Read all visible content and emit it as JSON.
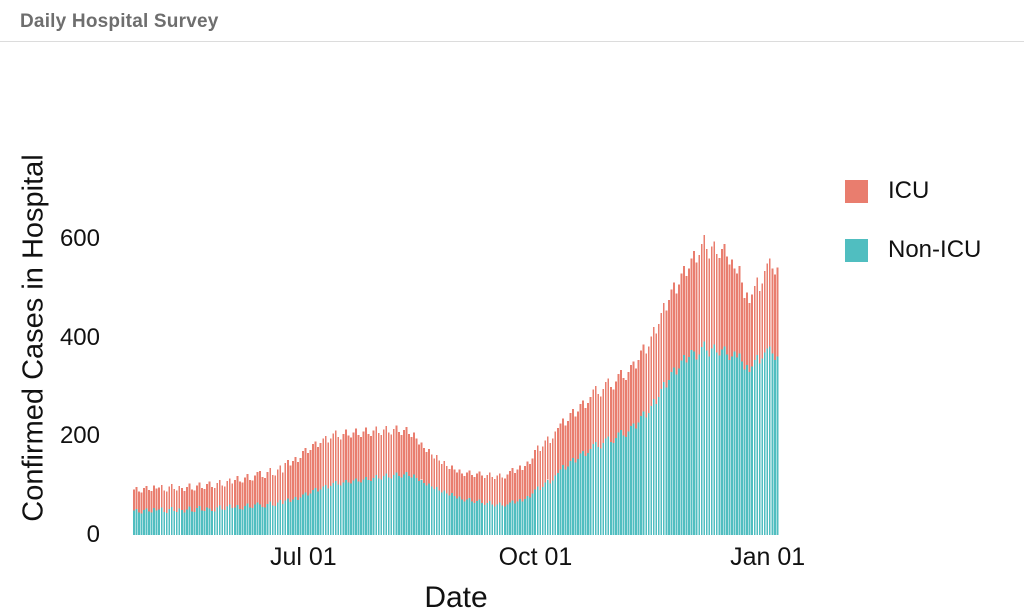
{
  "header": {
    "title": "Daily Hospital Survey"
  },
  "chart_data": {
    "type": "bar",
    "stacked": true,
    "title": "Daily Hospital Survey",
    "xlabel": "Date",
    "ylabel": "Confirmed Cases in Hospital",
    "ylim": [
      0,
      650
    ],
    "yticks": [
      0,
      200,
      400,
      600
    ],
    "grid": false,
    "x": {
      "interval": "daily",
      "start_date": "Apr 25",
      "end_date": "Jan 05",
      "n_points": 256
    },
    "xticks": [
      {
        "label": "Jul 01",
        "index": 67
      },
      {
        "label": "Oct 01",
        "index": 159
      },
      {
        "label": "Jan 01",
        "index": 251
      }
    ],
    "legend": {
      "position": "right",
      "entries": [
        "ICU",
        "Non-ICU"
      ]
    },
    "series": [
      {
        "name": "ICU",
        "color": "#E97D6E",
        "stack_order": "top",
        "values": [
          42,
          44,
          42,
          42,
          44,
          45,
          43,
          43,
          45,
          44,
          44,
          45,
          43,
          43,
          45,
          46,
          44,
          43,
          45,
          44,
          43,
          45,
          46,
          44,
          43,
          45,
          47,
          45,
          44,
          47,
          54,
          48,
          47,
          49,
          52,
          48,
          47,
          51,
          53,
          49,
          56,
          59,
          55,
          54,
          58,
          60,
          55,
          55,
          59,
          62,
          68,
          61,
          60,
          65,
          68,
          62,
          62,
          67,
          70,
          64,
          76,
          78,
          74,
          78,
          81,
          77,
          80,
          88,
          90,
          86,
          88,
          93,
          95,
          90,
          94,
          98,
          100,
          94,
          97,
          101,
          103,
          97,
          94,
          99,
          102,
          96,
          94,
          98,
          101,
          95,
          93,
          97,
          100,
          94,
          92,
          96,
          98,
          92,
          90,
          94,
          96,
          91,
          89,
          93,
          95,
          89,
          86,
          90,
          91,
          85,
          82,
          85,
          80,
          74,
          76,
          71,
          68,
          70,
          65,
          62,
          65,
          61,
          58,
          60,
          56,
          54,
          56,
          54,
          53,
          55,
          53,
          52,
          55,
          56,
          54,
          53,
          56,
          57,
          56,
          55,
          57,
          58,
          56,
          56,
          59,
          59,
          57,
          57,
          61,
          64,
          66,
          62,
          65,
          68,
          64,
          67,
          70,
          68,
          71,
          80,
          83,
          79,
          82,
          86,
          88,
          83,
          86,
          89,
          91,
          93,
          94,
          89,
          92,
          97,
          99,
          93,
          96,
          101,
          103,
          97,
          102,
          106,
          111,
          113,
          108,
          106,
          110,
          114,
          117,
          111,
          109,
          114,
          118,
          121,
          116,
          115,
          120,
          124,
          126,
          122,
          127,
          133,
          136,
          130,
          135,
          140,
          146,
          142,
          148,
          154,
          160,
          156,
          162,
          168,
          172,
          165,
          170,
          176,
          180,
          175,
          179,
          185,
          204,
          196,
          202,
          209,
          216,
          206,
          198,
          207,
          209,
          200,
          198,
          204,
          208,
          199,
          193,
          196,
          168,
          170,
          177,
          160,
          145,
          147,
          140,
          146,
          150,
          157,
          147,
          152,
          165,
          172,
          178,
          172,
          173,
          180
        ]
      },
      {
        "name": "Non-ICU",
        "color": "#50BEC0",
        "stack_order": "bottom",
        "values": [
          50,
          53,
          46,
          44,
          51,
          54,
          48,
          46,
          55,
          50,
          52,
          56,
          47,
          45,
          53,
          57,
          49,
          47,
          54,
          51,
          46,
          52,
          58,
          48,
          47,
          55,
          59,
          50,
          49,
          56,
          54,
          49,
          48,
          56,
          60,
          52,
          51,
          58,
          62,
          55,
          56,
          61,
          53,
          52,
          59,
          64,
          56,
          55,
          62,
          66,
          62,
          57,
          56,
          63,
          68,
          60,
          59,
          66,
          71,
          63,
          70,
          74,
          67,
          72,
          77,
          71,
          76,
          82,
          86,
          80,
          84,
          91,
          95,
          88,
          92,
          98,
          101,
          94,
          99,
          105,
          109,
          102,
          100,
          106,
          112,
          106,
          104,
          110,
          115,
          108,
          106,
          113,
          118,
          111,
          109,
          116,
          122,
          115,
          113,
          120,
          125,
          117,
          115,
          122,
          127,
          120,
          117,
          123,
          128,
          120,
          117,
          123,
          116,
          109,
          112,
          105,
          100,
          104,
          98,
          93,
          97,
          90,
          86,
          90,
          84,
          80,
          85,
          79,
          74,
          78,
          72,
          68,
          72,
          75,
          68,
          65,
          69,
          72,
          65,
          61,
          65,
          69,
          62,
          58,
          62,
          66,
          60,
          58,
          62,
          66,
          70,
          64,
          68,
          73,
          68,
          73,
          79,
          76,
          84,
          92,
          98,
          91,
          97,
          106,
          112,
          104,
          110,
          121,
          126,
          133,
          142,
          133,
          139,
          150,
          156,
          147,
          154,
          165,
          170,
          160,
          166,
          174,
          184,
          189,
          178,
          175,
          186,
          196,
          200,
          189,
          186,
          197,
          208,
          213,
          202,
          199,
          210,
          221,
          226,
          216,
          228,
          241,
          250,
          238,
          247,
          262,
          276,
          266,
          280,
          296,
          310,
          299,
          314,
          330,
          340,
          325,
          338,
          354,
          365,
          350,
          361,
          375,
          372,
          356,
          366,
          381,
          392,
          374,
          362,
          378,
          386,
          370,
          364,
          376,
          382,
          366,
          355,
          362,
          372,
          360,
          368,
          352,
          335,
          345,
          330,
          342,
          355,
          365,
          348,
          358,
          370,
          378,
          382,
          368,
          355,
          362
        ]
      }
    ]
  }
}
